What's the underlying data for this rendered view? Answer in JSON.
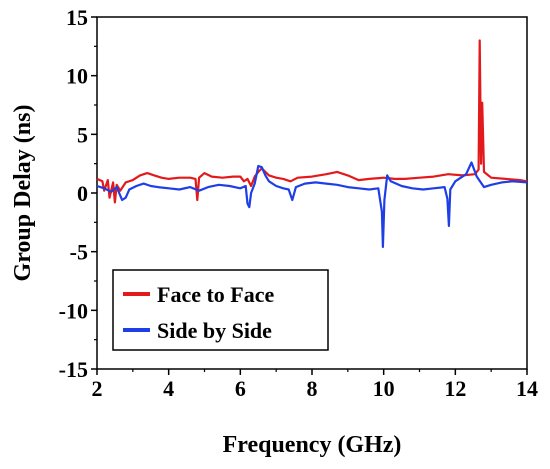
{
  "chart_data": {
    "type": "line",
    "title": "",
    "xlabel": "Frequency (GHz)",
    "ylabel": "Group Delay (ns)",
    "xlim": [
      2,
      14
    ],
    "ylim": [
      -15,
      15
    ],
    "x_ticks": [
      2,
      4,
      6,
      8,
      10,
      12,
      14
    ],
    "y_ticks": [
      -15,
      -10,
      -5,
      0,
      5,
      10,
      15
    ],
    "grid": false,
    "legend_position": "bottom-left",
    "series": [
      {
        "name": "Face to Face",
        "color": "#e31a1c",
        "points": [
          [
            2.0,
            1.2
          ],
          [
            2.15,
            1.0
          ],
          [
            2.2,
            0.2
          ],
          [
            2.3,
            1.1
          ],
          [
            2.35,
            -0.4
          ],
          [
            2.45,
            0.9
          ],
          [
            2.5,
            -0.8
          ],
          [
            2.55,
            0.7
          ],
          [
            2.65,
            0.2
          ],
          [
            2.8,
            0.9
          ],
          [
            3.0,
            1.1
          ],
          [
            3.2,
            1.5
          ],
          [
            3.4,
            1.7
          ],
          [
            3.6,
            1.5
          ],
          [
            3.8,
            1.3
          ],
          [
            4.0,
            1.2
          ],
          [
            4.3,
            1.3
          ],
          [
            4.6,
            1.3
          ],
          [
            4.75,
            1.2
          ],
          [
            4.8,
            -0.6
          ],
          [
            4.85,
            1.3
          ],
          [
            5.0,
            1.7
          ],
          [
            5.2,
            1.4
          ],
          [
            5.5,
            1.3
          ],
          [
            5.8,
            1.4
          ],
          [
            6.0,
            1.4
          ],
          [
            6.1,
            1.0
          ],
          [
            6.2,
            1.2
          ],
          [
            6.3,
            0.6
          ],
          [
            6.4,
            1.4
          ],
          [
            6.5,
            1.8
          ],
          [
            6.6,
            2.1
          ],
          [
            6.8,
            1.5
          ],
          [
            7.0,
            1.3
          ],
          [
            7.2,
            1.2
          ],
          [
            7.4,
            1.0
          ],
          [
            7.6,
            1.3
          ],
          [
            8.0,
            1.4
          ],
          [
            8.4,
            1.6
          ],
          [
            8.7,
            1.8
          ],
          [
            9.0,
            1.5
          ],
          [
            9.3,
            1.1
          ],
          [
            9.6,
            1.2
          ],
          [
            10.0,
            1.3
          ],
          [
            10.3,
            1.2
          ],
          [
            10.6,
            1.2
          ],
          [
            11.0,
            1.3
          ],
          [
            11.4,
            1.4
          ],
          [
            11.8,
            1.6
          ],
          [
            12.2,
            1.5
          ],
          [
            12.55,
            1.6
          ],
          [
            12.65,
            2.0
          ],
          [
            12.68,
            13.0
          ],
          [
            12.72,
            2.5
          ],
          [
            12.75,
            7.7
          ],
          [
            12.8,
            1.8
          ],
          [
            13.0,
            1.3
          ],
          [
            13.4,
            1.2
          ],
          [
            13.8,
            1.1
          ],
          [
            14.0,
            1.0
          ]
        ]
      },
      {
        "name": "Side by Side",
        "color": "#1f3fe6",
        "points": [
          [
            2.0,
            0.6
          ],
          [
            2.2,
            0.4
          ],
          [
            2.4,
            0.1
          ],
          [
            2.55,
            0.5
          ],
          [
            2.7,
            -0.6
          ],
          [
            2.8,
            -0.4
          ],
          [
            2.9,
            0.3
          ],
          [
            3.1,
            0.6
          ],
          [
            3.3,
            0.8
          ],
          [
            3.5,
            0.6
          ],
          [
            3.7,
            0.5
          ],
          [
            4.0,
            0.4
          ],
          [
            4.3,
            0.3
          ],
          [
            4.6,
            0.5
          ],
          [
            4.85,
            0.2
          ],
          [
            5.1,
            0.5
          ],
          [
            5.4,
            0.7
          ],
          [
            5.7,
            0.6
          ],
          [
            6.0,
            0.4
          ],
          [
            6.15,
            0.6
          ],
          [
            6.2,
            -0.9
          ],
          [
            6.25,
            -1.2
          ],
          [
            6.3,
            0.0
          ],
          [
            6.4,
            0.8
          ],
          [
            6.5,
            2.3
          ],
          [
            6.6,
            2.2
          ],
          [
            6.7,
            1.5
          ],
          [
            6.8,
            1.0
          ],
          [
            7.0,
            0.6
          ],
          [
            7.2,
            0.4
          ],
          [
            7.35,
            0.3
          ],
          [
            7.45,
            -0.6
          ],
          [
            7.55,
            0.5
          ],
          [
            7.8,
            0.8
          ],
          [
            8.1,
            0.9
          ],
          [
            8.4,
            0.8
          ],
          [
            8.7,
            0.7
          ],
          [
            9.0,
            0.5
          ],
          [
            9.3,
            0.4
          ],
          [
            9.6,
            0.3
          ],
          [
            9.85,
            0.4
          ],
          [
            9.95,
            -1.6
          ],
          [
            9.98,
            -4.6
          ],
          [
            10.02,
            -0.6
          ],
          [
            10.1,
            1.5
          ],
          [
            10.2,
            1.0
          ],
          [
            10.5,
            0.6
          ],
          [
            10.8,
            0.4
          ],
          [
            11.1,
            0.3
          ],
          [
            11.4,
            0.4
          ],
          [
            11.7,
            0.5
          ],
          [
            11.78,
            -0.5
          ],
          [
            11.82,
            -2.8
          ],
          [
            11.86,
            0.3
          ],
          [
            12.0,
            1.0
          ],
          [
            12.3,
            1.6
          ],
          [
            12.45,
            2.6
          ],
          [
            12.6,
            1.4
          ],
          [
            12.8,
            0.5
          ],
          [
            13.0,
            0.7
          ],
          [
            13.3,
            0.9
          ],
          [
            13.6,
            1.0
          ],
          [
            14.0,
            0.9
          ]
        ]
      }
    ]
  }
}
